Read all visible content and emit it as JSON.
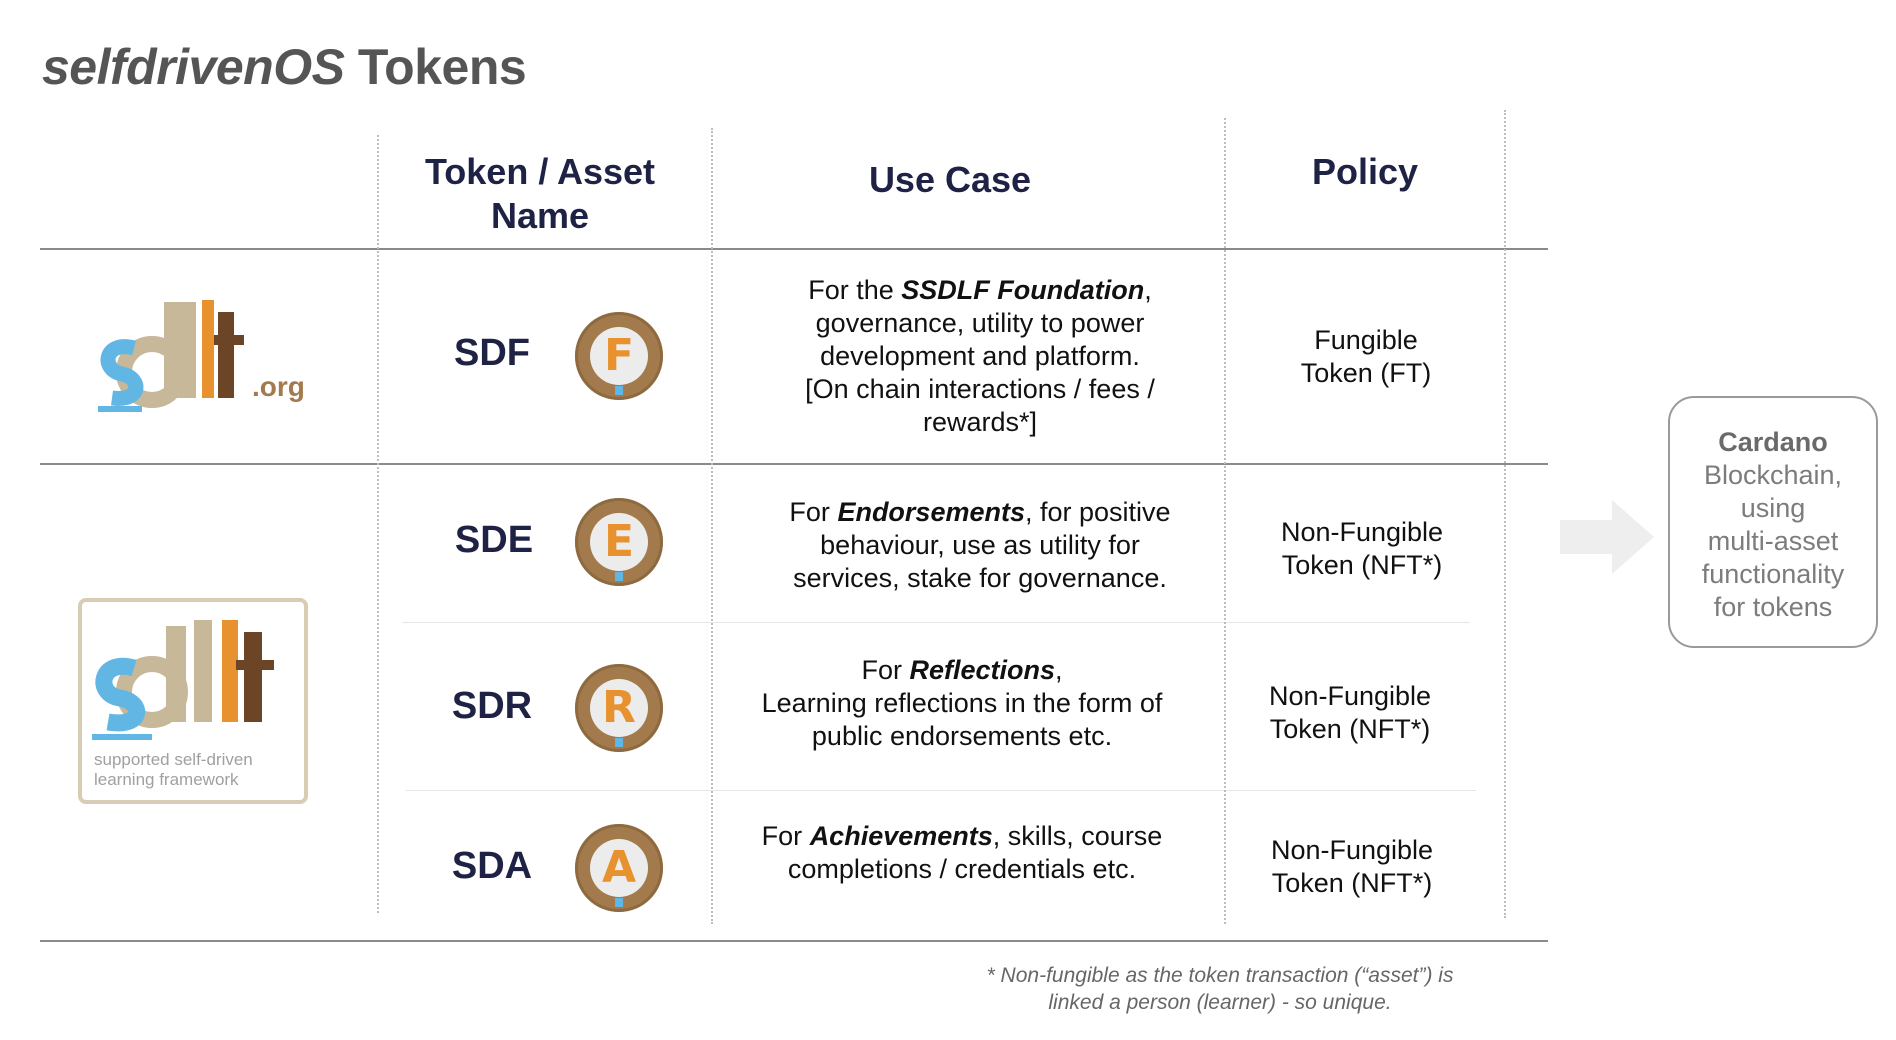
{
  "title": {
    "italic_part": "selfdrivenOS",
    "rest": " Tokens"
  },
  "headers": {
    "token_line1": "Token / Asset",
    "token_line2": "Name",
    "use_case": "Use Case",
    "policy": "Policy"
  },
  "logos": {
    "sdlf_org": {
      "text_main": "sdlf",
      "text_suffix": ".org"
    },
    "sdlf_framework": {
      "text_main": "sdlf",
      "caption_line1": "supported self-driven",
      "caption_line2": "learning framework"
    }
  },
  "rows": [
    {
      "symbol": "SDF",
      "coin_letter": "F",
      "use": {
        "pre": "For the ",
        "bold": "SSDLF Foundation",
        "post": ",",
        "lines": [
          "governance, utility to power",
          "development and platform.",
          "[On chain interactions / fees /",
          "rewards*]"
        ]
      },
      "policy": [
        "Fungible",
        "Token (FT)"
      ]
    },
    {
      "symbol": "SDE",
      "coin_letter": "E",
      "use": {
        "pre": "For ",
        "bold": "Endorsements",
        "post": ", for positive",
        "lines": [
          "behaviour, use as utility for",
          "services, stake for governance."
        ]
      },
      "policy": [
        "Non-Fungible",
        "Token (NFT*)"
      ]
    },
    {
      "symbol": "SDR",
      "coin_letter": "R",
      "use": {
        "pre": "For ",
        "bold": "Reflections",
        "post": ",",
        "lines": [
          "Learning reflections in the form of",
          "public endorsements etc."
        ]
      },
      "policy": [
        "Non-Fungible",
        "Token (NFT*)"
      ]
    },
    {
      "symbol": "SDA",
      "coin_letter": "A",
      "use": {
        "pre": "For ",
        "bold": "Achievements",
        "post": ", skills, course",
        "lines": [
          "completions / credentials etc."
        ]
      },
      "policy": [
        "Non-Fungible",
        "Token (NFT*)"
      ]
    }
  ],
  "footnote": [
    "* Non-fungible as the token transaction (“asset”) is",
    "linked a person (learner) - so unique."
  ],
  "cardano": {
    "bold": "Cardano",
    "lines": [
      "Blockchain,",
      "using",
      "multi-asset",
      "functionality",
      "for tokens"
    ]
  },
  "colors": {
    "coin": "#a27a4c",
    "coin_letter": "#e7922f",
    "sdlf_blue": "#62b6e3",
    "sdlf_tan": "#c8b89a",
    "sdlf_orange": "#e7922f",
    "sdlf_brown": "#6b4526",
    "heading": "#1e2245"
  }
}
